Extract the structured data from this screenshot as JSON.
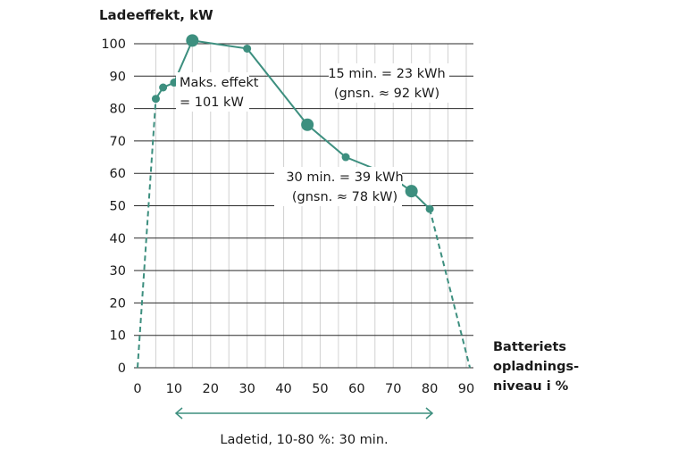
{
  "chart_data": {
    "type": "line",
    "ylabel": "Ladeeffekt, kW",
    "xlabel_lines": [
      "Batteriets",
      "opladnings-",
      "niveau i %"
    ],
    "ylim": [
      0,
      100
    ],
    "xlim": [
      0,
      90
    ],
    "y_ticks": [
      "0",
      "10",
      "20",
      "30",
      "40",
      "50",
      "60",
      "70",
      "80",
      "90",
      "100"
    ],
    "x_ticks": [
      "0",
      "10",
      "20",
      "30",
      "40",
      "50",
      "60",
      "70",
      "80",
      "90"
    ],
    "grid": {
      "vertical_every": 5,
      "horizontal_every": 10
    },
    "series_color": "#3d8f7f",
    "dashed_start": [
      {
        "x": 0,
        "y": 0
      },
      {
        "x": 5,
        "y": 83
      }
    ],
    "solid_points": [
      {
        "x": 5,
        "y": 83
      },
      {
        "x": 7,
        "y": 86.5
      },
      {
        "x": 10,
        "y": 88
      },
      {
        "x": 15,
        "y": 101
      },
      {
        "x": 30,
        "y": 98.5
      },
      {
        "x": 46.5,
        "y": 75
      },
      {
        "x": 57,
        "y": 65
      },
      {
        "x": 68,
        "y": 60
      },
      {
        "x": 75,
        "y": 54.5
      },
      {
        "x": 80,
        "y": 49
      }
    ],
    "dashed_end": [
      {
        "x": 80,
        "y": 49
      },
      {
        "x": 91,
        "y": 0
      }
    ],
    "markers": [
      {
        "x": 5,
        "y": 83,
        "size": "small"
      },
      {
        "x": 7,
        "y": 86.5,
        "size": "small"
      },
      {
        "x": 10,
        "y": 88,
        "size": "small"
      },
      {
        "x": 15,
        "y": 101,
        "size": "large"
      },
      {
        "x": 30,
        "y": 98.5,
        "size": "small"
      },
      {
        "x": 46.5,
        "y": 75,
        "size": "large"
      },
      {
        "x": 57,
        "y": 65,
        "size": "small"
      },
      {
        "x": 68,
        "y": 60,
        "size": "small"
      },
      {
        "x": 75,
        "y": 54.5,
        "size": "large"
      },
      {
        "x": 80,
        "y": 49,
        "size": "small"
      }
    ],
    "annotations": [
      {
        "lines": [
          "Maks. effekt",
          "= 101 kW"
        ]
      },
      {
        "lines": [
          "15 min. = 23 kWh",
          "(gnsn. ≈ 92 kW)"
        ]
      },
      {
        "lines": [
          "30 min. = 39 kWh",
          "(gnsn. ≈ 78 kW)"
        ]
      }
    ],
    "range_arrow": {
      "from": 10,
      "to": 80,
      "label": "Ladetid, 10-80 %: 30 min."
    }
  }
}
